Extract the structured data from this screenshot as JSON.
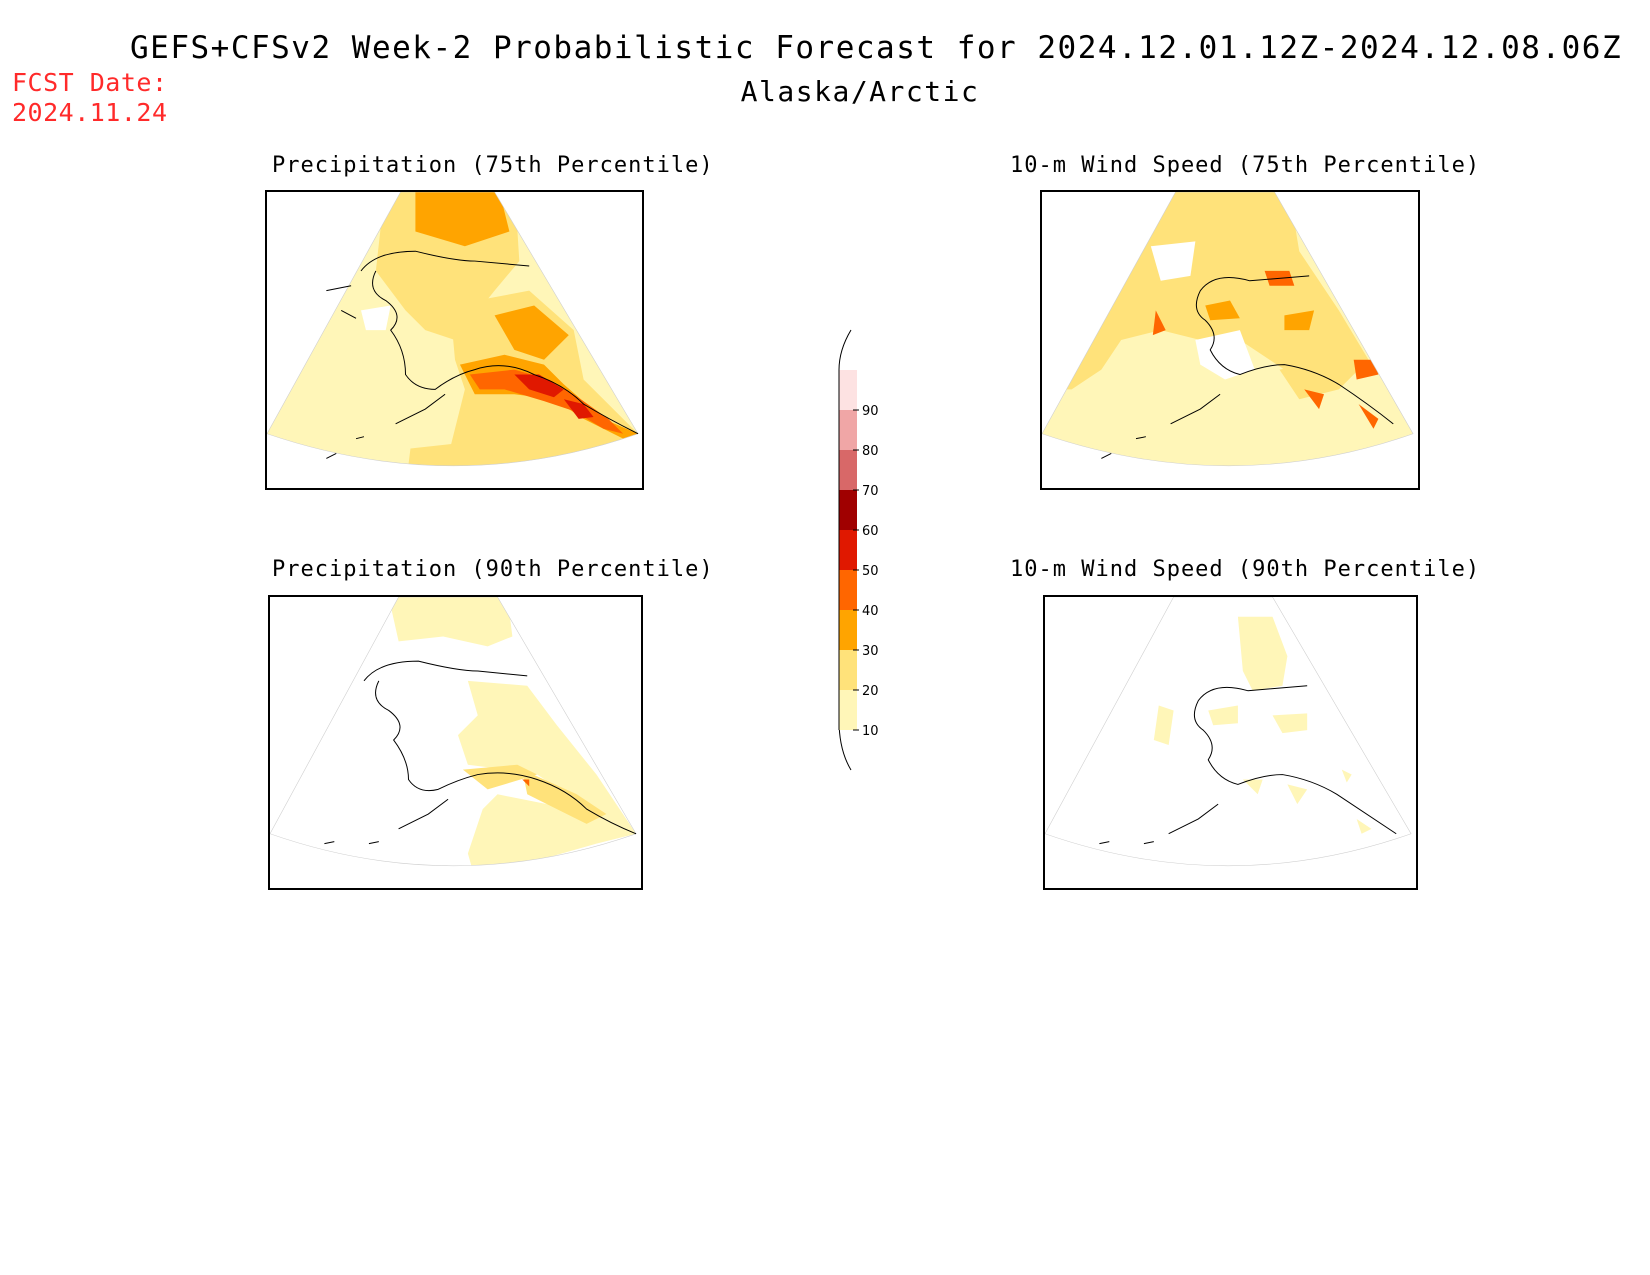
{
  "header": {
    "title": "GEFS+CFSv2 Week-2 Probabilistic Forecast for 2024.12.01.12Z-2024.12.08.06Z",
    "subtitle": "Alaska/Arctic",
    "fcst_date_label": "FCST Date:",
    "fcst_date_value": "2024.11.24"
  },
  "panels": [
    {
      "id": "precip-75",
      "title": "Precipitation (75th Percentile)"
    },
    {
      "id": "wind-75",
      "title": "10-m Wind Speed (75th Percentile)"
    },
    {
      "id": "precip-90",
      "title": "Precipitation (90th Percentile)"
    },
    {
      "id": "wind-90",
      "title": "10-m Wind Speed (90th Percentile)"
    }
  ],
  "colorbar": {
    "levels": [
      "10",
      "20",
      "30",
      "40",
      "50",
      "60",
      "70",
      "80",
      "90"
    ],
    "colors": [
      "#fff6b8",
      "#ffe27a",
      "#ffa400",
      "#ff6600",
      "#e01800",
      "#a00000",
      "#d86868",
      "#f0a6a6",
      "#fde2e2"
    ]
  },
  "colors": {
    "fcst_date": "#ff2a2a",
    "lvl10": "#fff6b8",
    "lvl20": "#ffe27a",
    "lvl30": "#ffa400",
    "lvl40": "#ff6600",
    "lvl50": "#e01800",
    "lvl60": "#a00000"
  }
}
